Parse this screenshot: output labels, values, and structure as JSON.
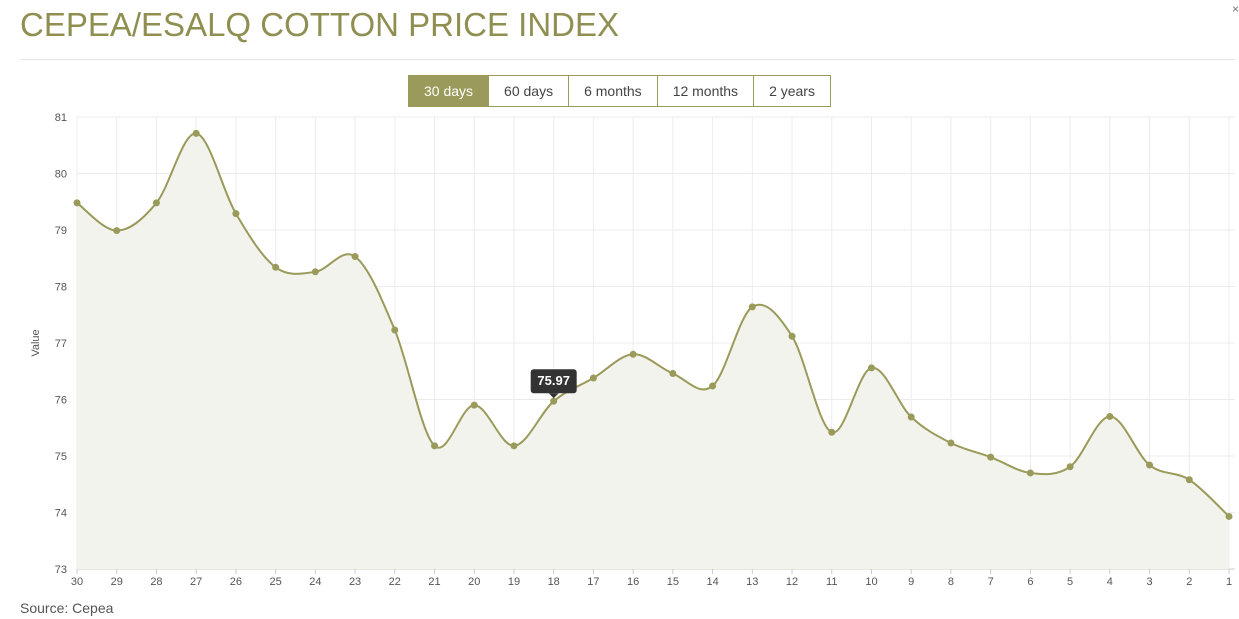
{
  "page": {
    "title": "CEPEA/ESALQ COTTON PRICE INDEX",
    "source_note": "Source: Cepea",
    "corner_mark": "×"
  },
  "range_tabs": [
    {
      "label": "30 days",
      "active": true
    },
    {
      "label": "60 days",
      "active": false
    },
    {
      "label": "6 months",
      "active": false
    },
    {
      "label": "12 months",
      "active": false
    },
    {
      "label": "2 years",
      "active": false
    }
  ],
  "colors": {
    "accent": "#9a9a5a",
    "line": "#9a9a5a",
    "area_fill": "#f3f3ee",
    "grid": "#ececec",
    "tooltip_bg": "#333333"
  },
  "chart_data": {
    "type": "area",
    "title": "",
    "xlabel": "",
    "ylabel": "Value",
    "ylim": [
      73,
      81
    ],
    "y_ticks": [
      "73",
      "74",
      "75",
      "76",
      "77",
      "78",
      "79",
      "80",
      "81"
    ],
    "categories": [
      "30",
      "29",
      "28",
      "27",
      "26",
      "25",
      "24",
      "23",
      "22",
      "21",
      "20",
      "19",
      "18",
      "17",
      "16",
      "15",
      "14",
      "13",
      "12",
      "11",
      "10",
      "9",
      "8",
      "7",
      "6",
      "5",
      "4",
      "3",
      "2",
      "1"
    ],
    "series": [
      {
        "values": [
          79.48,
          78.99,
          79.48,
          80.71,
          79.29,
          78.34,
          78.26,
          78.53,
          77.23,
          75.18,
          75.9,
          75.18,
          75.97,
          76.38,
          76.8,
          76.46,
          76.24,
          77.64,
          77.12,
          75.42,
          76.56,
          75.69,
          75.23,
          74.98,
          74.7,
          74.81,
          75.7,
          74.84,
          74.58,
          73.93
        ]
      }
    ],
    "grid": true,
    "tooltip": {
      "category": "18",
      "label": "75.97"
    }
  }
}
